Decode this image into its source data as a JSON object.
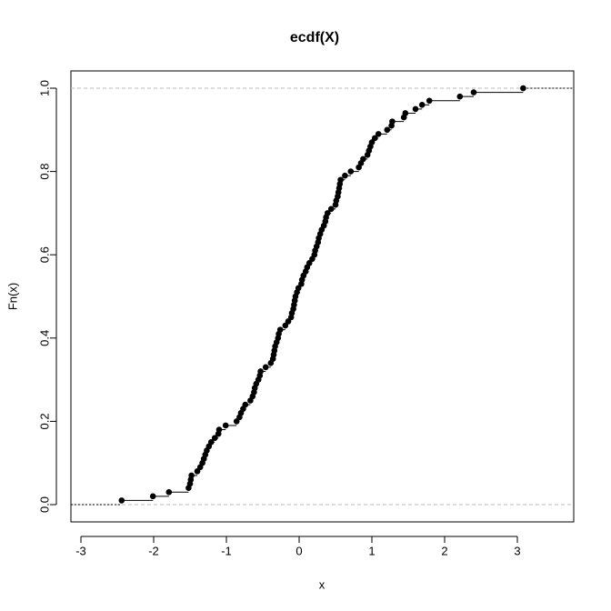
{
  "chart_data": {
    "type": "ecdf",
    "title": "ecdf(X)",
    "x_label": "x",
    "y_label": "Fn(x)",
    "x": [
      -2.44,
      -2.01,
      -1.79,
      -1.52,
      -1.5,
      -1.49,
      -1.48,
      -1.4,
      -1.36,
      -1.33,
      -1.31,
      -1.29,
      -1.27,
      -1.24,
      -1.21,
      -1.16,
      -1.11,
      -1.1,
      -1.01,
      -0.86,
      -0.82,
      -0.8,
      -0.77,
      -0.74,
      -0.67,
      -0.64,
      -0.62,
      -0.61,
      -0.59,
      -0.56,
      -0.54,
      -0.53,
      -0.46,
      -0.39,
      -0.36,
      -0.35,
      -0.34,
      -0.33,
      -0.31,
      -0.29,
      -0.28,
      -0.26,
      -0.19,
      -0.15,
      -0.11,
      -0.1,
      -0.08,
      -0.07,
      -0.06,
      -0.05,
      -0.03,
      -0.01,
      0.03,
      0.04,
      0.06,
      0.09,
      0.11,
      0.14,
      0.18,
      0.21,
      0.22,
      0.24,
      0.26,
      0.27,
      0.29,
      0.31,
      0.34,
      0.36,
      0.37,
      0.39,
      0.44,
      0.5,
      0.51,
      0.53,
      0.54,
      0.55,
      0.56,
      0.57,
      0.63,
      0.71,
      0.82,
      0.85,
      0.88,
      0.94,
      0.96,
      0.98,
      1.0,
      1.04,
      1.09,
      1.21,
      1.27,
      1.28,
      1.44,
      1.46,
      1.6,
      1.69,
      1.79,
      2.21,
      2.4,
      3.08
    ],
    "values": [
      0.01,
      0.02,
      0.03,
      0.04,
      0.05,
      0.06,
      0.07,
      0.08,
      0.09,
      0.1,
      0.11,
      0.12,
      0.13,
      0.14,
      0.15,
      0.16,
      0.17,
      0.18,
      0.19,
      0.2,
      0.21,
      0.22,
      0.23,
      0.24,
      0.25,
      0.26,
      0.27,
      0.28,
      0.29,
      0.3,
      0.31,
      0.32,
      0.33,
      0.34,
      0.35,
      0.36,
      0.37,
      0.38,
      0.39,
      0.4,
      0.41,
      0.42,
      0.43,
      0.44,
      0.45,
      0.46,
      0.47,
      0.48,
      0.49,
      0.5,
      0.51,
      0.52,
      0.53,
      0.54,
      0.55,
      0.56,
      0.57,
      0.58,
      0.59,
      0.6,
      0.61,
      0.62,
      0.63,
      0.64,
      0.65,
      0.66,
      0.67,
      0.68,
      0.69,
      0.7,
      0.71,
      0.72,
      0.73,
      0.74,
      0.75,
      0.76,
      0.77,
      0.78,
      0.79,
      0.8,
      0.81,
      0.82,
      0.83,
      0.84,
      0.85,
      0.86,
      0.87,
      0.88,
      0.89,
      0.9,
      0.91,
      0.92,
      0.93,
      0.94,
      0.95,
      0.96,
      0.97,
      0.98,
      0.99,
      1.0
    ],
    "color": "#000000",
    "reference_color": "#bbbbbb",
    "hlines": [
      0,
      1
    ],
    "xlim": [
      -3.1375,
      3.775
    ],
    "ylim": [
      -0.0415,
      1.0415
    ],
    "xticks": [
      -3,
      -2,
      -1,
      0,
      1,
      2,
      3
    ],
    "yticks": [
      {
        "value": 0,
        "label": "0.0"
      },
      {
        "value": 0.2,
        "label": "0.2"
      },
      {
        "value": 0.4,
        "label": "0.4"
      },
      {
        "value": 0.6,
        "label": "0.6"
      },
      {
        "value": 0.8,
        "label": "0.8"
      },
      {
        "value": 1,
        "label": "1.0"
      }
    ]
  }
}
